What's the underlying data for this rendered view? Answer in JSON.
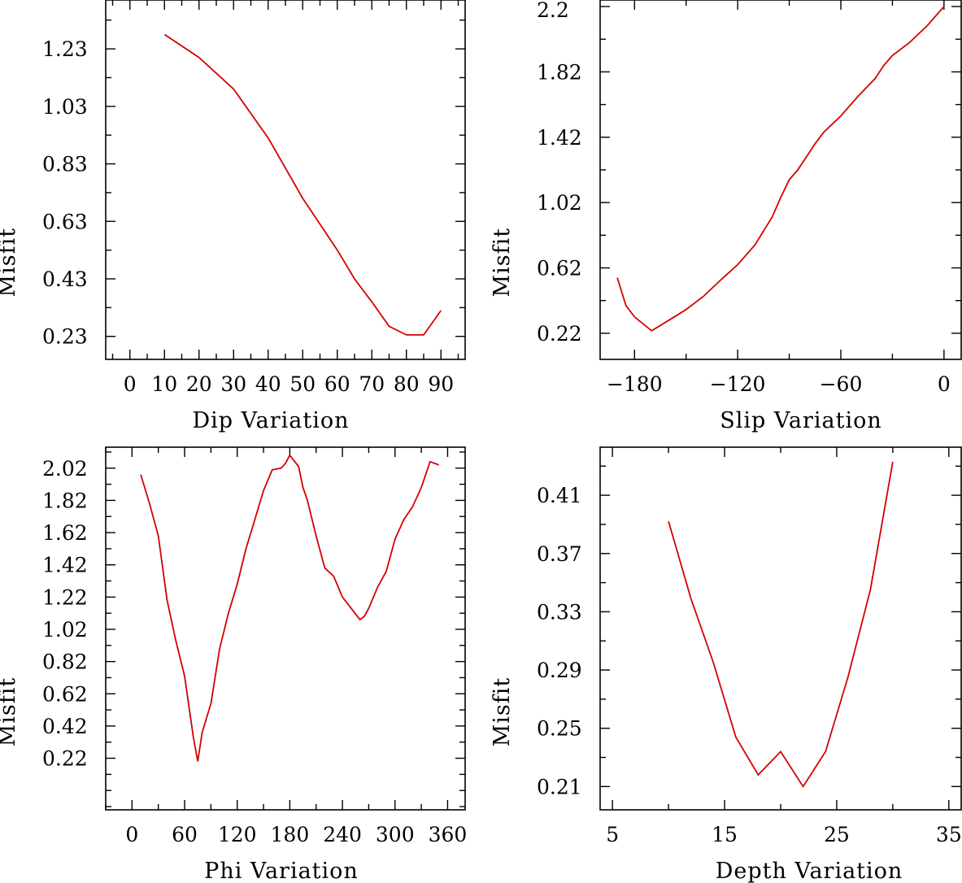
{
  "colors": {
    "series": "#d40000",
    "axes": "#000000",
    "background": "#ffffff"
  },
  "chart_data": [
    {
      "type": "line",
      "title": "",
      "xlabel": "Dip    Variation",
      "ylabel": "Misfit",
      "xlim": [
        -7,
        97
      ],
      "ylim": [
        0.15,
        1.4
      ],
      "grid": false,
      "xticks": [
        "0",
        "10",
        "20",
        "30",
        "40",
        "50",
        "60",
        "70",
        "80",
        "90"
      ],
      "yticks": [
        "0.23",
        "0.43",
        "0.63",
        "0.83",
        "1.03",
        "1.23"
      ],
      "x": [
        10,
        20,
        30,
        40,
        50,
        60,
        65,
        70,
        75,
        80,
        85,
        90
      ],
      "y": [
        1.28,
        1.2,
        1.09,
        0.92,
        0.71,
        0.53,
        0.43,
        0.35,
        0.265,
        0.235,
        0.235,
        0.32
      ]
    },
    {
      "type": "line",
      "title": "",
      "xlabel": "Slip    Variation",
      "ylabel": "Misfit",
      "xlim": [
        -200,
        10
      ],
      "ylim": [
        0.06,
        2.26
      ],
      "grid": false,
      "xticks": [
        "-180",
        "-120",
        "-60",
        "0"
      ],
      "yticks": [
        "0.22",
        "0.62",
        "1.02",
        "1.42",
        "1.82",
        "2.2"
      ],
      "x": [
        -190,
        -185,
        -180,
        -170,
        -160,
        -150,
        -140,
        -130,
        -120,
        -110,
        -100,
        -95,
        -90,
        -85,
        -80,
        -75,
        -70,
        -60,
        -50,
        -40,
        -35,
        -30,
        -20,
        -10,
        0
      ],
      "y": [
        0.56,
        0.39,
        0.32,
        0.235,
        0.3,
        0.365,
        0.445,
        0.545,
        0.64,
        0.76,
        0.93,
        1.05,
        1.16,
        1.22,
        1.3,
        1.38,
        1.45,
        1.55,
        1.67,
        1.78,
        1.86,
        1.92,
        2.0,
        2.1,
        2.22
      ]
    },
    {
      "type": "line",
      "title": "",
      "xlabel": "Phi    Variation",
      "ylabel": "Misfit",
      "xlim": [
        -30,
        380
      ],
      "ylim": [
        -0.1,
        2.15
      ],
      "grid": false,
      "xticks": [
        "0",
        "60",
        "120",
        "180",
        "240",
        "300",
        "360"
      ],
      "yticks": [
        "0.22",
        "0.42",
        "0.62",
        "0.82",
        "1.02",
        "1.22",
        "1.42",
        "1.62",
        "1.82",
        "2.02"
      ],
      "x": [
        10,
        20,
        30,
        35,
        40,
        50,
        60,
        70,
        75,
        80,
        90,
        100,
        110,
        120,
        130,
        140,
        150,
        160,
        170,
        175,
        180,
        190,
        195,
        200,
        210,
        220,
        230,
        240,
        250,
        260,
        265,
        270,
        280,
        290,
        300,
        310,
        320,
        330,
        340,
        345,
        350
      ],
      "y": [
        1.98,
        1.8,
        1.6,
        1.4,
        1.2,
        0.95,
        0.73,
        0.35,
        0.2,
        0.38,
        0.56,
        0.9,
        1.12,
        1.3,
        1.52,
        1.7,
        1.88,
        2.01,
        2.02,
        2.05,
        2.1,
        2.03,
        1.9,
        1.82,
        1.6,
        1.4,
        1.35,
        1.22,
        1.15,
        1.08,
        1.1,
        1.15,
        1.28,
        1.38,
        1.58,
        1.7,
        1.78,
        1.9,
        2.06,
        2.05,
        2.04
      ]
    },
    {
      "type": "line",
      "title": "",
      "xlabel": "Depth    Variation",
      "ylabel": "Misfit",
      "xlim": [
        3.9,
        36.1
      ],
      "ylim": [
        0.194,
        0.443
      ],
      "grid": false,
      "xticks": [
        "5",
        "15",
        "25",
        "35"
      ],
      "yticks": [
        "0.21",
        "0.25",
        "0.29",
        "0.33",
        "0.37",
        "0.41"
      ],
      "x": [
        10,
        12,
        14,
        16,
        18,
        20,
        22,
        24,
        26,
        28,
        30
      ],
      "y": [
        0.392,
        0.339,
        0.295,
        0.244,
        0.218,
        0.234,
        0.21,
        0.234,
        0.285,
        0.345,
        0.433
      ]
    }
  ]
}
